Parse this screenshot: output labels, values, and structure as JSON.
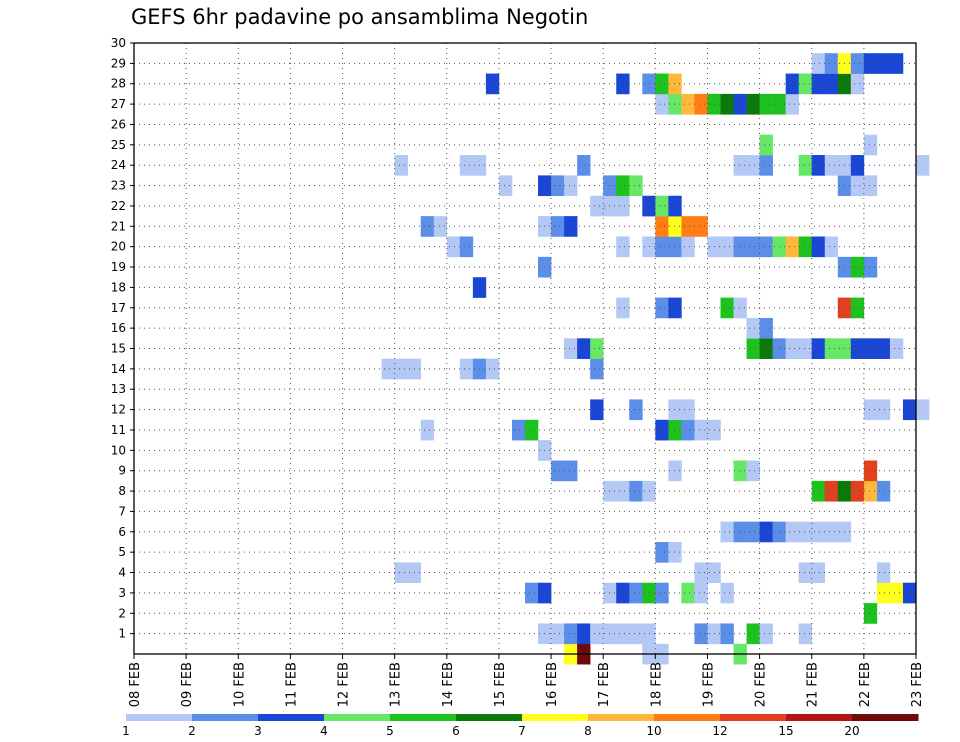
{
  "chart_data": {
    "type": "heatmap",
    "title": "GEFS 6hr padavine po ansamblima Negotin",
    "xlabel": "",
    "ylabel": "",
    "x_tick_labels": [
      "08 FEB",
      "09 FEB",
      "10 FEB",
      "11 FEB",
      "12 FEB",
      "13 FEB",
      "14 FEB",
      "15 FEB",
      "16 FEB",
      "17 FEB",
      "18 FEB",
      "19 FEB",
      "20 FEB",
      "21 FEB",
      "22 FEB",
      "23 FEB"
    ],
    "y_tick_labels": [
      "1",
      "2",
      "3",
      "4",
      "5",
      "6",
      "7",
      "8",
      "9",
      "10",
      "11",
      "12",
      "13",
      "14",
      "15",
      "16",
      "17",
      "18",
      "19",
      "20",
      "21",
      "22",
      "23",
      "24",
      "25",
      "26",
      "27",
      "28",
      "29",
      "30"
    ],
    "x_range_days": [
      0,
      15
    ],
    "y_range": [
      0,
      30
    ],
    "grid": true,
    "colorbar": {
      "levels": [
        "1",
        "2",
        "3",
        "4",
        "5",
        "6",
        "7",
        "8",
        "10",
        "12",
        "15",
        "20"
      ],
      "colors": [
        "#b4c8f5",
        "#5b8ee8",
        "#1a46d6",
        "#66e866",
        "#1ec21e",
        "#0b7a0b",
        "#ffff1e",
        "#ffb83c",
        "#ff7d14",
        "#e1411e",
        "#b41414",
        "#6e0a0a"
      ]
    },
    "cells": [
      [
        8.25,
        0,
        6
      ],
      [
        8.5,
        0,
        11
      ],
      [
        9.75,
        0,
        0
      ],
      [
        10,
        0,
        0
      ],
      [
        11.5,
        0,
        3
      ],
      [
        7.75,
        1,
        0
      ],
      [
        8,
        1,
        0
      ],
      [
        8.25,
        1,
        1
      ],
      [
        8.5,
        1,
        2
      ],
      [
        8.75,
        1,
        0
      ],
      [
        9,
        1,
        0
      ],
      [
        9.25,
        1,
        0
      ],
      [
        9.5,
        1,
        0
      ],
      [
        9.75,
        1,
        0
      ],
      [
        10.75,
        1,
        1
      ],
      [
        11,
        1,
        0
      ],
      [
        11.25,
        1,
        1
      ],
      [
        11.75,
        1,
        4
      ],
      [
        12,
        1,
        0
      ],
      [
        12.75,
        1,
        0
      ],
      [
        14,
        2,
        4
      ],
      [
        7.5,
        3,
        1
      ],
      [
        7.75,
        3,
        2
      ],
      [
        9,
        3,
        0
      ],
      [
        9.25,
        3,
        2
      ],
      [
        9.5,
        3,
        1
      ],
      [
        9.75,
        3,
        4
      ],
      [
        10,
        3,
        1
      ],
      [
        10.5,
        3,
        3
      ],
      [
        10.75,
        3,
        0
      ],
      [
        11.25,
        3,
        0
      ],
      [
        14.25,
        3,
        6
      ],
      [
        14.5,
        3,
        6
      ],
      [
        14.75,
        3,
        2
      ],
      [
        5,
        4,
        0
      ],
      [
        5.25,
        4,
        0
      ],
      [
        10.75,
        4,
        0
      ],
      [
        11,
        4,
        0
      ],
      [
        12.75,
        4,
        0
      ],
      [
        13,
        4,
        0
      ],
      [
        14.25,
        4,
        0
      ],
      [
        10,
        5,
        1
      ],
      [
        10.25,
        5,
        0
      ],
      [
        11.25,
        6,
        0
      ],
      [
        11.5,
        6,
        1
      ],
      [
        11.75,
        6,
        1
      ],
      [
        12,
        6,
        2
      ],
      [
        12.25,
        6,
        1
      ],
      [
        12.5,
        6,
        0
      ],
      [
        12.75,
        6,
        0
      ],
      [
        13,
        6,
        0
      ],
      [
        13.25,
        6,
        0
      ],
      [
        13.5,
        6,
        0
      ],
      [
        9,
        8,
        0
      ],
      [
        9.25,
        8,
        0
      ],
      [
        9.5,
        8,
        1
      ],
      [
        9.75,
        8,
        0
      ],
      [
        13,
        8,
        4
      ],
      [
        13.25,
        8,
        9
      ],
      [
        13.5,
        8,
        5
      ],
      [
        13.75,
        8,
        9
      ],
      [
        14,
        8,
        7
      ],
      [
        14.25,
        8,
        1
      ],
      [
        8,
        9,
        1
      ],
      [
        8.25,
        9,
        1
      ],
      [
        10.25,
        9,
        0
      ],
      [
        11.5,
        9,
        3
      ],
      [
        11.75,
        9,
        0
      ],
      [
        14,
        9,
        9
      ],
      [
        7.75,
        10,
        0
      ],
      [
        5.5,
        11,
        0
      ],
      [
        7.25,
        11,
        1
      ],
      [
        7.5,
        11,
        4
      ],
      [
        10,
        11,
        2
      ],
      [
        10.25,
        11,
        4
      ],
      [
        10.5,
        11,
        1
      ],
      [
        10.75,
        11,
        0
      ],
      [
        11,
        11,
        0
      ],
      [
        8.75,
        12,
        2
      ],
      [
        9.5,
        12,
        1
      ],
      [
        10.25,
        12,
        0
      ],
      [
        10.5,
        12,
        0
      ],
      [
        14,
        12,
        0
      ],
      [
        14.25,
        12,
        0
      ],
      [
        14.75,
        12,
        2
      ],
      [
        15,
        12,
        0
      ],
      [
        4.75,
        14,
        0
      ],
      [
        5,
        14,
        0
      ],
      [
        5.25,
        14,
        0
      ],
      [
        6.25,
        14,
        0
      ],
      [
        6.5,
        14,
        1
      ],
      [
        6.75,
        14,
        0
      ],
      [
        8.75,
        14,
        1
      ],
      [
        8.25,
        15,
        0
      ],
      [
        8.5,
        15,
        2
      ],
      [
        8.75,
        15,
        3
      ],
      [
        11.75,
        15,
        4
      ],
      [
        12,
        15,
        5
      ],
      [
        12.25,
        15,
        1
      ],
      [
        12.5,
        15,
        0
      ],
      [
        12.75,
        15,
        0
      ],
      [
        13,
        15,
        2
      ],
      [
        13.25,
        15,
        3
      ],
      [
        13.5,
        15,
        3
      ],
      [
        13.75,
        15,
        2
      ],
      [
        14,
        15,
        2
      ],
      [
        14.25,
        15,
        2
      ],
      [
        14.5,
        15,
        0
      ],
      [
        11.75,
        16,
        0
      ],
      [
        12,
        16,
        1
      ],
      [
        9.25,
        17,
        0
      ],
      [
        10,
        17,
        1
      ],
      [
        10.25,
        17,
        2
      ],
      [
        11.25,
        17,
        4
      ],
      [
        11.5,
        17,
        0
      ],
      [
        13.5,
        17,
        9
      ],
      [
        13.75,
        17,
        4
      ],
      [
        6.5,
        18,
        2
      ],
      [
        7.75,
        19,
        1
      ],
      [
        13.5,
        19,
        1
      ],
      [
        13.75,
        19,
        4
      ],
      [
        14,
        19,
        1
      ],
      [
        6,
        20,
        0
      ],
      [
        6.25,
        20,
        1
      ],
      [
        9.25,
        20,
        0
      ],
      [
        9.75,
        20,
        0
      ],
      [
        10,
        20,
        1
      ],
      [
        10.25,
        20,
        1
      ],
      [
        10.5,
        20,
        0
      ],
      [
        11,
        20,
        0
      ],
      [
        11.25,
        20,
        0
      ],
      [
        11.5,
        20,
        1
      ],
      [
        11.75,
        20,
        1
      ],
      [
        12,
        20,
        1
      ],
      [
        12.25,
        20,
        3
      ],
      [
        12.5,
        20,
        7
      ],
      [
        12.75,
        20,
        4
      ],
      [
        13,
        20,
        2
      ],
      [
        13.25,
        20,
        0
      ],
      [
        5.5,
        21,
        1
      ],
      [
        5.75,
        21,
        0
      ],
      [
        7.75,
        21,
        0
      ],
      [
        8,
        21,
        1
      ],
      [
        8.25,
        21,
        2
      ],
      [
        10,
        21,
        8
      ],
      [
        10.25,
        21,
        6
      ],
      [
        10.5,
        21,
        8
      ],
      [
        10.75,
        21,
        8
      ],
      [
        8.75,
        22,
        0
      ],
      [
        9,
        22,
        0
      ],
      [
        9.25,
        22,
        0
      ],
      [
        9.75,
        22,
        2
      ],
      [
        10,
        22,
        3
      ],
      [
        10.25,
        22,
        2
      ],
      [
        7,
        23,
        0
      ],
      [
        7.75,
        23,
        2
      ],
      [
        8,
        23,
        1
      ],
      [
        8.25,
        23,
        0
      ],
      [
        9,
        23,
        1
      ],
      [
        9.25,
        23,
        4
      ],
      [
        9.5,
        23,
        3
      ],
      [
        13.5,
        23,
        1
      ],
      [
        13.75,
        23,
        0
      ],
      [
        14,
        23,
        0
      ],
      [
        5,
        24,
        0
      ],
      [
        6.25,
        24,
        0
      ],
      [
        6.5,
        24,
        0
      ],
      [
        8.5,
        24,
        1
      ],
      [
        11.5,
        24,
        0
      ],
      [
        11.75,
        24,
        0
      ],
      [
        12,
        24,
        1
      ],
      [
        12.75,
        24,
        3
      ],
      [
        13,
        24,
        2
      ],
      [
        13.25,
        24,
        0
      ],
      [
        13.5,
        24,
        0
      ],
      [
        13.75,
        24,
        2
      ],
      [
        15,
        24,
        0
      ],
      [
        12,
        25,
        3
      ],
      [
        14,
        25,
        0
      ],
      [
        10,
        27,
        0
      ],
      [
        10.25,
        27,
        3
      ],
      [
        10.5,
        27,
        7
      ],
      [
        10.75,
        27,
        8
      ],
      [
        11,
        27,
        4
      ],
      [
        11.25,
        27,
        5
      ],
      [
        11.5,
        27,
        2
      ],
      [
        11.75,
        27,
        5
      ],
      [
        12,
        27,
        4
      ],
      [
        12.25,
        27,
        4
      ],
      [
        12.5,
        27,
        0
      ],
      [
        6.75,
        28,
        2
      ],
      [
        9.25,
        28,
        2
      ],
      [
        9.75,
        28,
        1
      ],
      [
        10,
        28,
        4
      ],
      [
        10.25,
        28,
        7
      ],
      [
        12.5,
        28,
        2
      ],
      [
        12.75,
        28,
        3
      ],
      [
        13,
        28,
        2
      ],
      [
        13.25,
        28,
        2
      ],
      [
        13.5,
        28,
        5
      ],
      [
        13.75,
        28,
        0
      ],
      [
        13,
        29,
        0
      ],
      [
        13.25,
        29,
        1
      ],
      [
        13.5,
        29,
        6
      ],
      [
        13.75,
        29,
        1
      ],
      [
        14,
        29,
        2
      ],
      [
        14.25,
        29,
        2
      ],
      [
        14.5,
        29,
        2
      ]
    ]
  }
}
